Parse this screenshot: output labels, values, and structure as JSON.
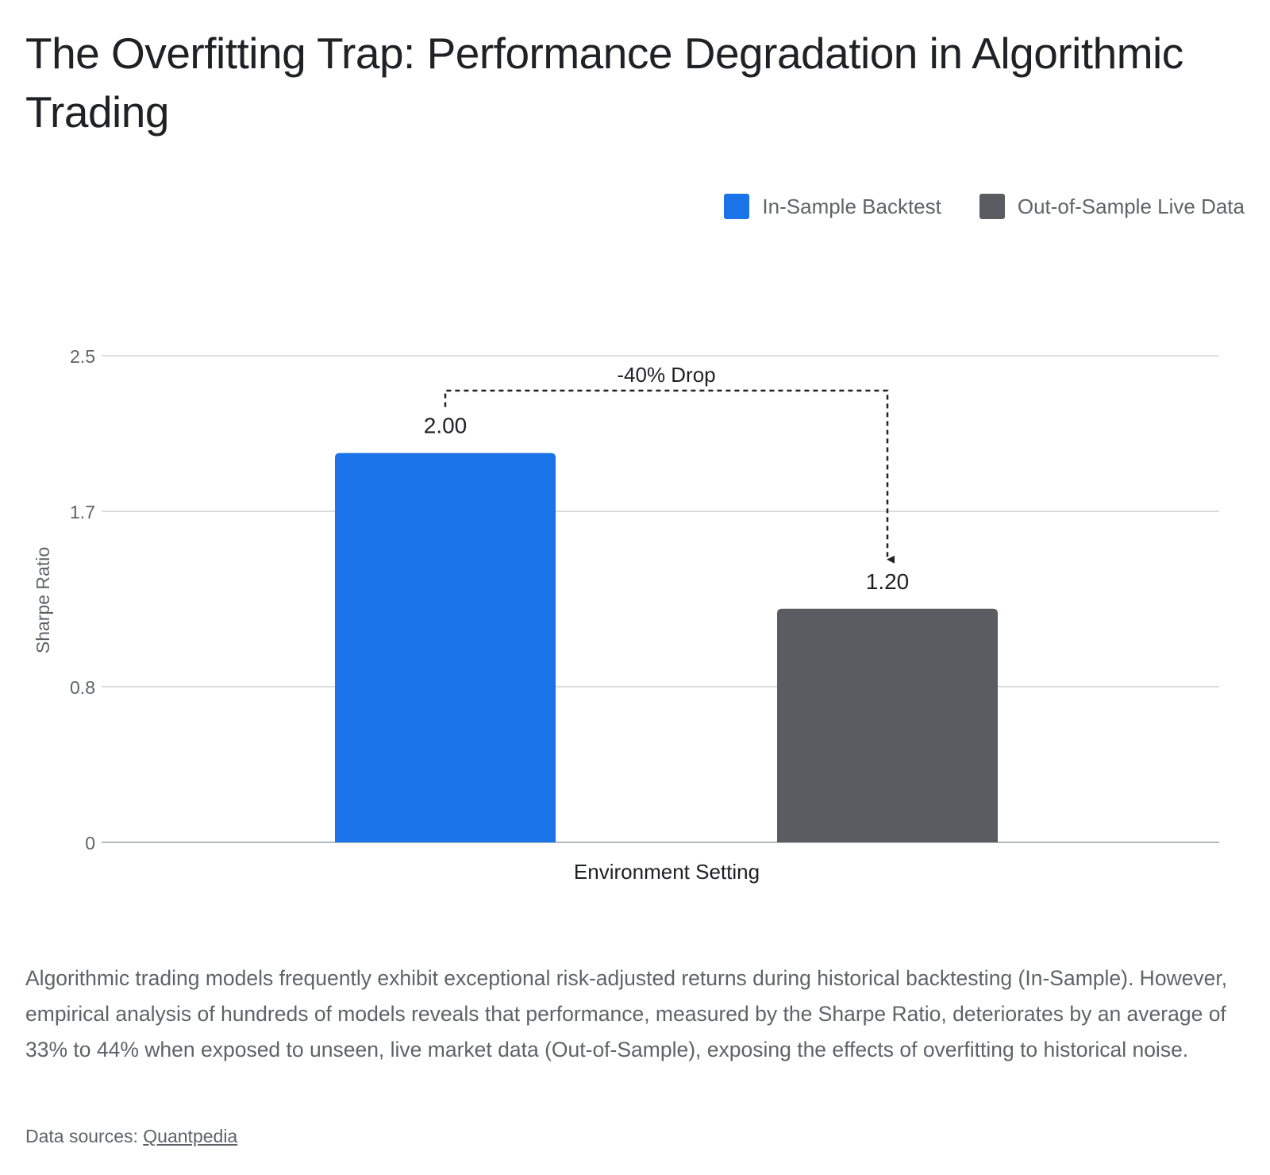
{
  "title": "The Overfitting Trap: Performance Degradation in Algorithmic Trading",
  "legend": [
    {
      "label": "In-Sample Backtest",
      "color": "#1a73e8"
    },
    {
      "label": "Out-of-Sample Live Data",
      "color": "#5a5c61"
    }
  ],
  "chart_data": {
    "type": "bar",
    "categories": [
      "Environment Setting"
    ],
    "series": [
      {
        "name": "In-Sample Backtest",
        "values": [
          2.0
        ],
        "color": "#1a73e8",
        "label": "2.00"
      },
      {
        "name": "Out-of-Sample Live Data",
        "values": [
          1.2
        ],
        "color": "#5a5c61",
        "label": "1.20"
      }
    ],
    "xlabel": "Environment Setting",
    "ylabel": "Sharpe Ratio",
    "ylim": [
      0,
      2.5
    ],
    "yticks": [
      0,
      0.8,
      1.7,
      2.5
    ],
    "ytick_labels": [
      "0",
      "0.8",
      "1.7",
      "2.5"
    ],
    "grid": true,
    "legend_position": "top-right",
    "annotation": {
      "text": "-40% Drop",
      "from_series": 0,
      "to_series": 1,
      "style": "dashed-arrow"
    }
  },
  "description": "Algorithmic trading models frequently exhibit exceptional risk-adjusted returns during historical backtesting (In-Sample). However, empirical analysis of hundreds of models reveals that performance, measured by the Sharpe Ratio, deteriorates by an average of 33% to 44% when exposed to unseen, live market data (Out-of-Sample), exposing the effects of overfitting to historical noise.",
  "sources": {
    "prefix": "Data sources: ",
    "link_text": "Quantpedia"
  }
}
